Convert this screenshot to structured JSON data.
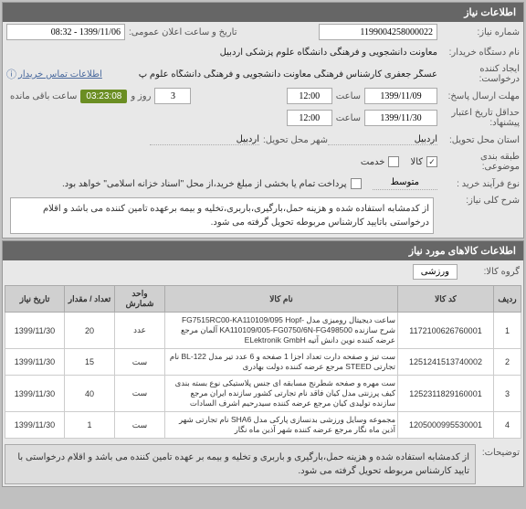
{
  "panel1": {
    "title": "اطلاعات نیاز",
    "need_number_label": "شماره نیاز:",
    "need_number": "1199004258000022",
    "announce_label": "تاریخ و ساعت اعلان عمومی:",
    "announce_value": "1399/11/06 - 08:32",
    "buyer_label": "نام دستگاه خریدار:",
    "buyer_value": "معاونت دانشجویی و فرهنگی دانشگاه علوم پزشکی اردبیل",
    "creator_label": "ایجاد کننده درخواست:",
    "creator_value": "عسگر جعفری کارشناس فرهنگی معاونت دانشجویی و فرهنگی دانشگاه علوم پ",
    "contact_link": "اطلاعات تماس خریدار",
    "deadline_label": "مهلت ارسال پاسخ:",
    "deadline_date": "1399/11/09",
    "time_label": "ساعت",
    "deadline_time": "12:00",
    "days_val": "3",
    "days_label": "روز و",
    "countdown": "03:23:08",
    "remain_label": "ساعت باقی مانده",
    "validity_label": "حداقل تاریخ اعتبار پیشنهاد:",
    "validity_date": "1399/11/30",
    "validity_time": "12:00",
    "delivery_province_label": "استان محل تحویل:",
    "delivery_province": "اردبیل",
    "delivery_city_label": "شهر محل تحویل:",
    "delivery_city": "اردبیل",
    "category_label": "طبقه بندی موضوعی:",
    "cat_goods": "کالا",
    "cat_service": "خدمت",
    "cat_goods_checked": true,
    "cat_service_checked": false,
    "process_label": "نوع فرآیند خرید :",
    "process_value": "متوسط",
    "process_desc": "پرداخت تمام یا بخشی از مبلغ خرید،از محل \"اسناد خزانه اسلامی\" خواهد بود.",
    "process_checked": false,
    "main_desc_label": "شرح کلی نیاز:",
    "main_desc": "از کدمشابه استفاده شده و هزینه حمل،بارگیری،باربری،تخلیه و بیمه برعهده تامین کننده می باشد و اقلام درخواستی باتایید کارشناس مربوطه تحویل گرفته می شود."
  },
  "panel2": {
    "title": "اطلاعات کالاهای مورد نیاز",
    "group_label": "گروه کالا:",
    "group_value": "ورزشی",
    "columns": [
      "ردیف",
      "کد کالا",
      "نام کالا",
      "واحد شمارش",
      "تعداد / مقدار",
      "تاریخ نیاز"
    ],
    "rows": [
      {
        "idx": "1",
        "code": "1172100626760001",
        "name": "ساعت دیجیتال رومیزی مدل -FG7515RC00-KA110109/095 Hopf شرح سازنده KA110109/005-FG0750/6N-FG498500 آلمان مرجع عرضه کننده نوین دانش آتیه ELektronik GmbH",
        "unit": "عدد",
        "qty": "20",
        "date": "1399/11/30"
      },
      {
        "idx": "2",
        "code": "1251241513740002",
        "name": "ست تیز و صفحه دارت تعداد اجزا 1 صفحه و 6 عدد تیر مدل BL-122 نام تجارتی STEED مرجع عرضه کننده دولت بهادری",
        "unit": "ست",
        "qty": "15",
        "date": "1399/11/30"
      },
      {
        "idx": "3",
        "code": "1252311829160001",
        "name": "ست مهره و صفحه شطرنج مسابقه ای جنس پلاستیکی نوع بسته بندی کیف پرزنتی مدل کیان فاقد نام تجارتی کشور سازنده ایران مرجع سازنده تولیدی کیان مرجع عرضه کننده سیدرحیم اشرف السادات",
        "unit": "ست",
        "qty": "40",
        "date": "1399/11/30"
      },
      {
        "idx": "4",
        "code": "1205000995530001",
        "name": "مجموعه وسایل ورزشی بدنسازی پارکی مدل SHA6 نام تجارتی شهر آذین ماه نگار مرجع عرضه کننده شهر آذین ماه نگار",
        "unit": "ست",
        "qty": "1",
        "date": "1399/11/30"
      }
    ]
  },
  "footer": {
    "label": "توضیحات:",
    "text": "از کدمشابه استفاده شده و هزینه حمل،بارگیری و باربری و تخلیه و بیمه بر عهده تامین کننده می باشد و اقلام درخواستی با تایید کارشناس مربوطه تحویل گرفته می شود."
  }
}
